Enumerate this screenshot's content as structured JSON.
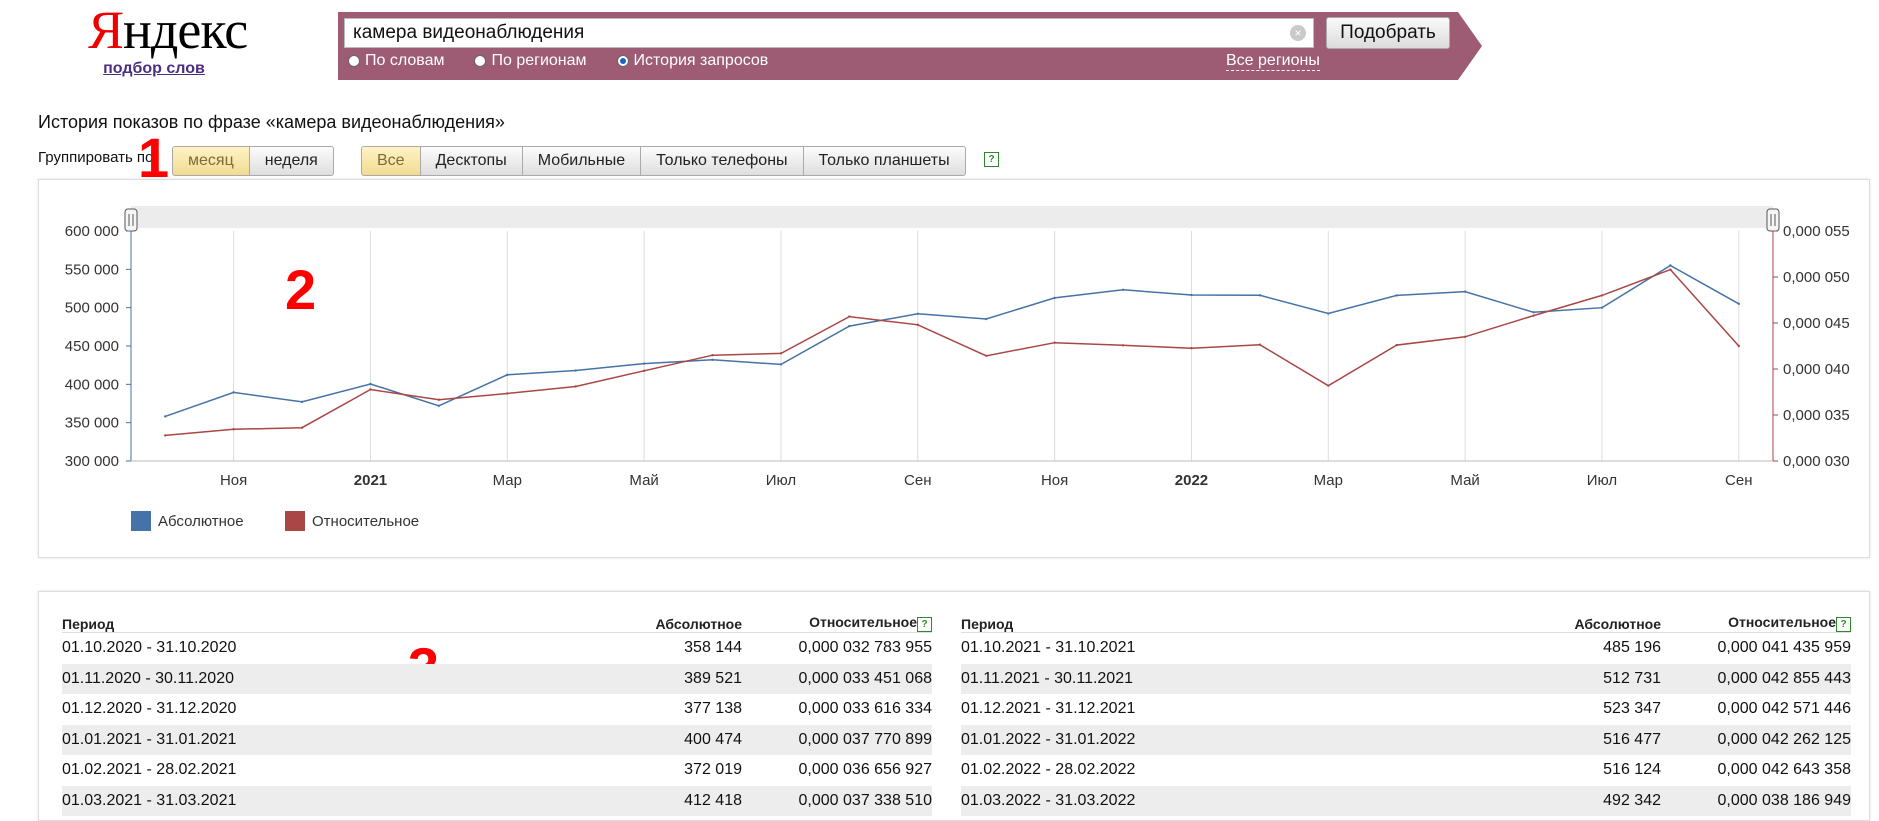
{
  "logo": {
    "text": "Яндекс",
    "sub_link": "подбор слов"
  },
  "search": {
    "query": "камера видеонаблюдения",
    "clear_glyph": "×",
    "submit_label": "Подобрать",
    "radios": [
      {
        "label": "По словам",
        "checked": false
      },
      {
        "label": "По регионам",
        "checked": false
      },
      {
        "label": "История запросов",
        "checked": true
      }
    ],
    "regions_link": "Все регионы"
  },
  "page_title": "История показов по фразе «камера видеонаблюдения»",
  "grouping": {
    "label": "Группировать по:",
    "options": [
      {
        "label": "месяц",
        "active": true
      },
      {
        "label": "неделя",
        "active": false
      }
    ]
  },
  "device_filter": {
    "options": [
      {
        "label": "Все",
        "active": true
      },
      {
        "label": "Десктопы",
        "active": false
      },
      {
        "label": "Мобильные",
        "active": false
      },
      {
        "label": "Только телефоны",
        "active": false
      },
      {
        "label": "Только планшеты",
        "active": false
      }
    ],
    "help_glyph": "?"
  },
  "annotations": [
    "1",
    "2",
    "3"
  ],
  "chart_data": {
    "type": "line",
    "x": [
      "10.2020",
      "11.2020",
      "12.2020",
      "01.2021",
      "02.2021",
      "03.2021",
      "04.2021",
      "05.2021",
      "06.2021",
      "07.2021",
      "08.2021",
      "09.2021",
      "10.2021",
      "11.2021",
      "12.2021",
      "01.2022",
      "02.2022",
      "03.2022",
      "04.2022",
      "05.2022",
      "06.2022",
      "07.2022",
      "08.2022",
      "09.2022"
    ],
    "x_ticks": [
      {
        "label": "Ноя",
        "bold": false,
        "index": 1
      },
      {
        "label": "2021",
        "bold": true,
        "index": 3
      },
      {
        "label": "Мар",
        "bold": false,
        "index": 5
      },
      {
        "label": "Май",
        "bold": false,
        "index": 7
      },
      {
        "label": "Июл",
        "bold": false,
        "index": 9
      },
      {
        "label": "Сен",
        "bold": false,
        "index": 11
      },
      {
        "label": "Ноя",
        "bold": false,
        "index": 13
      },
      {
        "label": "2022",
        "bold": true,
        "index": 15
      },
      {
        "label": "Мар",
        "bold": false,
        "index": 17
      },
      {
        "label": "Май",
        "bold": false,
        "index": 19
      },
      {
        "label": "Июл",
        "bold": false,
        "index": 21
      },
      {
        "label": "Сен",
        "bold": false,
        "index": 23
      }
    ],
    "y_left": {
      "ticks": [
        "600 000",
        "550 000",
        "500 000",
        "450 000",
        "400 000",
        "350 000",
        "300 000"
      ],
      "min": 300000,
      "max": 600000
    },
    "y_right": {
      "ticks": [
        "0,000 055",
        "0,000 050",
        "0,000 045",
        "0,000 040",
        "0,000 035",
        "0,000 030"
      ],
      "min": 3e-05,
      "max": 5.5e-05
    },
    "series": [
      {
        "name": "Абсолютное",
        "color": "#4572a7",
        "axis": "left",
        "values": [
          358144,
          389521,
          377138,
          400474,
          372019,
          412418,
          418000,
          427000,
          432000,
          426000,
          476000,
          492000,
          485196,
          512731,
          523347,
          516477,
          516124,
          492342,
          516000,
          521000,
          494000,
          500000,
          555000,
          505000
        ]
      },
      {
        "name": "Относительное",
        "color": "#aa4643",
        "axis": "right",
        "values": [
          3.2783955e-05,
          3.3451068e-05,
          3.3616334e-05,
          3.7770899e-05,
          3.6656927e-05,
          3.733851e-05,
          3.81e-05,
          3.98e-05,
          4.15e-05,
          4.17e-05,
          4.57e-05,
          4.48e-05,
          4.1435959e-05,
          4.2855443e-05,
          4.2571446e-05,
          4.2262125e-05,
          4.2643358e-05,
          3.8186949e-05,
          4.26e-05,
          4.35e-05,
          4.58e-05,
          4.8e-05,
          5.08e-05,
          4.25e-05
        ]
      }
    ],
    "legend": "bottom-left",
    "grid": true
  },
  "table": {
    "headers": {
      "period": "Период",
      "absolute": "Абсолютное",
      "relative": "Относительное"
    },
    "left": [
      {
        "period": "01.10.2020 - 31.10.2020",
        "absolute": "358 144",
        "relative": "0,000 032 783 955"
      },
      {
        "period": "01.11.2020 - 30.11.2020",
        "absolute": "389 521",
        "relative": "0,000 033 451 068"
      },
      {
        "period": "01.12.2020 - 31.12.2020",
        "absolute": "377 138",
        "relative": "0,000 033 616 334"
      },
      {
        "period": "01.01.2021 - 31.01.2021",
        "absolute": "400 474",
        "relative": "0,000 037 770 899"
      },
      {
        "period": "01.02.2021 - 28.02.2021",
        "absolute": "372 019",
        "relative": "0,000 036 656 927"
      },
      {
        "period": "01.03.2021 - 31.03.2021",
        "absolute": "412 418",
        "relative": "0,000 037 338 510"
      }
    ],
    "right": [
      {
        "period": "01.10.2021 - 31.10.2021",
        "absolute": "485 196",
        "relative": "0,000 041 435 959"
      },
      {
        "period": "01.11.2021 - 30.11.2021",
        "absolute": "512 731",
        "relative": "0,000 042 855 443"
      },
      {
        "period": "01.12.2021 - 31.12.2021",
        "absolute": "523 347",
        "relative": "0,000 042 571 446"
      },
      {
        "period": "01.01.2022 - 31.01.2022",
        "absolute": "516 477",
        "relative": "0,000 042 262 125"
      },
      {
        "period": "01.02.2022 - 28.02.2022",
        "absolute": "516 124",
        "relative": "0,000 042 643 358"
      },
      {
        "period": "01.03.2022 - 31.03.2022",
        "absolute": "492 342",
        "relative": "0,000 038 186 949"
      }
    ]
  }
}
